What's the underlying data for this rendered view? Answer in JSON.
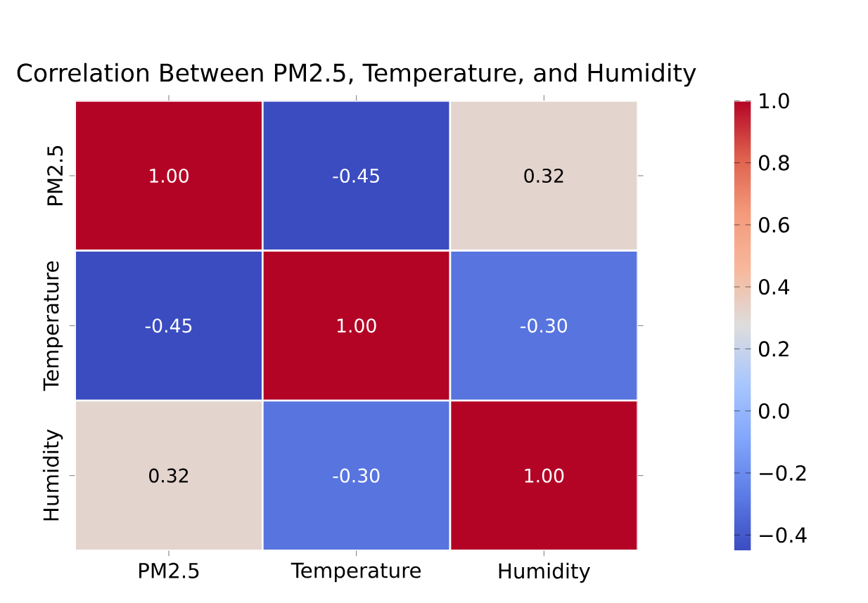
{
  "chart_data": {
    "type": "heatmap",
    "title": "Correlation Between PM2.5, Temperature, and Humidity",
    "categories": [
      "PM2.5",
      "Temperature",
      "Humidity"
    ],
    "y_categories": [
      "PM2.5",
      "Temperature",
      "Humidity"
    ],
    "cells": [
      [
        1.0,
        -0.45,
        0.32
      ],
      [
        -0.45,
        1.0,
        -0.3
      ],
      [
        0.32,
        -0.3,
        1.0
      ]
    ],
    "cell_labels": [
      [
        "1.00",
        "-0.45",
        "0.32"
      ],
      [
        "-0.45",
        "1.00",
        "-0.30"
      ],
      [
        "0.32",
        "-0.30",
        "1.00"
      ]
    ],
    "clim": [
      -0.45,
      1.0
    ],
    "cticks": [
      {
        "value": -0.4,
        "label": "−0.4"
      },
      {
        "value": -0.2,
        "label": "−0.2"
      },
      {
        "value": 0,
        "label": "0.0"
      },
      0.2,
      0.4,
      0.6,
      0.8,
      {
        "value": 1,
        "label": "1.0"
      }
    ]
  }
}
